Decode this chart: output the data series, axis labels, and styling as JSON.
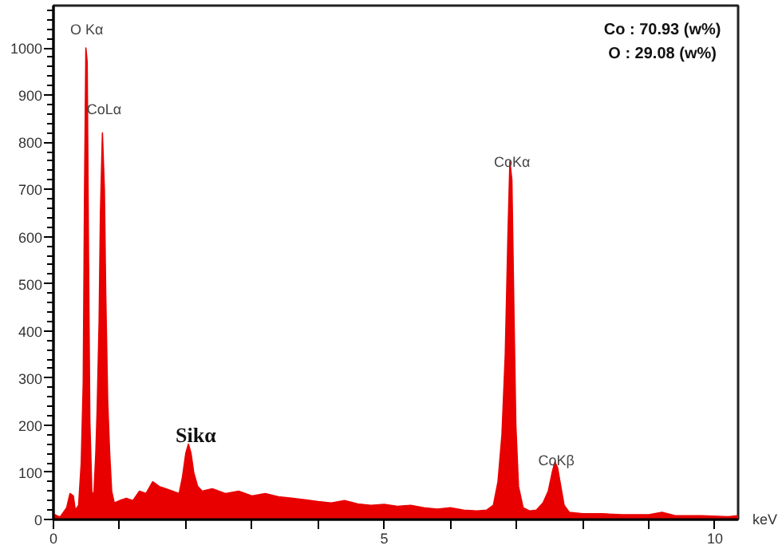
{
  "chart_data": {
    "type": "area",
    "xlabel": "keV",
    "xlim": [
      0,
      10.35
    ],
    "ylim": [
      0,
      1090
    ],
    "xticks": [
      0,
      {
        "value": 1,
        "label": null
      },
      {
        "value": 2,
        "label": null
      },
      {
        "value": 3,
        "label": null
      },
      {
        "value": 4,
        "label": null
      },
      5,
      {
        "value": 6,
        "label": null
      },
      {
        "value": 7,
        "label": null
      },
      {
        "value": 8,
        "label": null
      },
      {
        "value": 9,
        "label": null
      },
      10
    ],
    "yticks": [
      0,
      100,
      200,
      300,
      400,
      500,
      600,
      700,
      800,
      900,
      1000
    ],
    "grid": false,
    "series": [
      {
        "color": "#e80000",
        "x": [
          0.0,
          0.05,
          0.1,
          0.15,
          0.2,
          0.25,
          0.3,
          0.33,
          0.38,
          0.42,
          0.45,
          0.47,
          0.49,
          0.51,
          0.53,
          0.55,
          0.58,
          0.61,
          0.64,
          0.66,
          0.69,
          0.71,
          0.74,
          0.77,
          0.79,
          0.82,
          0.85,
          0.88,
          0.92,
          1.0,
          1.1,
          1.2,
          1.3,
          1.4,
          1.5,
          1.6,
          1.7,
          1.8,
          1.9,
          1.95,
          2.0,
          2.04,
          2.08,
          2.12,
          2.18,
          2.25,
          2.4,
          2.6,
          2.8,
          3.0,
          3.2,
          3.4,
          3.6,
          3.8,
          4.0,
          4.2,
          4.4,
          4.6,
          4.8,
          5.0,
          5.2,
          5.4,
          5.6,
          5.8,
          6.0,
          6.2,
          6.4,
          6.55,
          6.65,
          6.72,
          6.78,
          6.83,
          6.87,
          6.9,
          6.93,
          6.96,
          6.99,
          7.03,
          7.1,
          7.2,
          7.3,
          7.4,
          7.48,
          7.54,
          7.58,
          7.62,
          7.67,
          7.72,
          7.8,
          8.0,
          8.3,
          8.6,
          9.0,
          9.2,
          9.4,
          9.8,
          10.2,
          10.35
        ],
        "values": [
          12,
          8,
          5,
          15,
          25,
          55,
          50,
          20,
          30,
          120,
          290,
          700,
          1000,
          970,
          560,
          210,
          60,
          50,
          140,
          230,
          420,
          650,
          820,
          700,
          480,
          250,
          140,
          60,
          35,
          40,
          45,
          40,
          60,
          55,
          80,
          70,
          65,
          60,
          55,
          90,
          140,
          160,
          140,
          100,
          70,
          60,
          65,
          55,
          60,
          50,
          55,
          48,
          45,
          42,
          38,
          35,
          40,
          33,
          30,
          32,
          28,
          30,
          25,
          22,
          25,
          20,
          18,
          20,
          30,
          80,
          180,
          350,
          600,
          760,
          720,
          450,
          200,
          70,
          25,
          18,
          20,
          35,
          60,
          100,
          122,
          110,
          70,
          30,
          15,
          12,
          12,
          10,
          10,
          15,
          8,
          8,
          6,
          8
        ]
      }
    ],
    "annotations": [
      "O Kα",
      "CoLα",
      "Sikα",
      "CoKα",
      "CoKβ",
      "Co : 70.93  (w%)",
      "O  :  29.08 (w%)"
    ]
  }
}
